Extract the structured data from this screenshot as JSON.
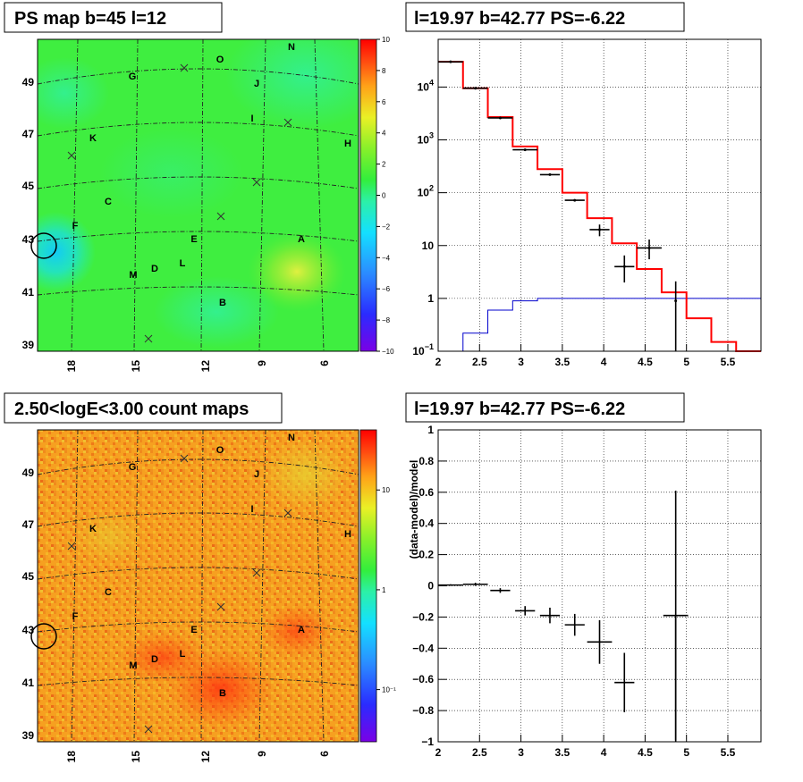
{
  "colors": {
    "data": "#000000",
    "model": "#ff0000",
    "background_model": "#0000cc",
    "grid": "#000000"
  },
  "maps": [
    {
      "title": "PS map b=45 l=12",
      "colorbar": {
        "scale": "linear",
        "range": [
          -10,
          10
        ],
        "ticks": [
          {
            "v": 10,
            "label": "10"
          },
          {
            "v": 8,
            "label": "8"
          },
          {
            "v": 6,
            "label": "6"
          },
          {
            "v": 4,
            "label": "4"
          },
          {
            "v": 2,
            "label": "2"
          },
          {
            "v": 0,
            "label": "0"
          },
          {
            "v": -2,
            "label": "−2"
          },
          {
            "v": -4,
            "label": "−4"
          },
          {
            "v": -6,
            "label": "−6"
          },
          {
            "v": -8,
            "label": "−8"
          },
          {
            "v": -10,
            "label": "−10"
          }
        ]
      }
    },
    {
      "title": "2.50<logE<3.00 count maps",
      "colorbar": {
        "scale": "log",
        "range": [
          0.03,
          40
        ],
        "ticks": [
          {
            "v": 10,
            "label": "10"
          },
          {
            "v": 1,
            "label": "1"
          },
          {
            "v": 0.1,
            "label": "10⁻¹"
          }
        ]
      }
    }
  ],
  "map_axes": {
    "y_ticks": [
      "49",
      "47",
      "45",
      "43",
      "41",
      "39"
    ],
    "x_ticks": [
      "18",
      "15",
      "12",
      "9",
      "6"
    ]
  },
  "sources": [
    {
      "name": "N"
    },
    {
      "name": "O"
    },
    {
      "name": "G"
    },
    {
      "name": "J"
    },
    {
      "name": "I"
    },
    {
      "name": "K"
    },
    {
      "name": "H"
    },
    {
      "name": "C"
    },
    {
      "name": "F"
    },
    {
      "name": "E"
    },
    {
      "name": "A"
    },
    {
      "name": "L"
    },
    {
      "name": "D"
    },
    {
      "name": "M"
    },
    {
      "name": "B"
    }
  ],
  "chart_data": [
    {
      "type": "line",
      "title": "l=19.97 b=42.77 PS=-6.22",
      "xlabel": "",
      "ylabel": "",
      "y_scale": "log",
      "xlim": [
        2,
        5.9
      ],
      "ylim": [
        0.1,
        80000
      ],
      "grid": true,
      "x_ticks": [
        "2",
        "2.5",
        "3",
        "3.5",
        "4",
        "4.5",
        "5",
        "5.5"
      ],
      "y_ticks": [
        {
          "v": 10000,
          "base": "10",
          "exp": "4"
        },
        {
          "v": 1000,
          "base": "10",
          "exp": "3"
        },
        {
          "v": 100,
          "base": "10",
          "exp": "2"
        },
        {
          "v": 10,
          "base": "10",
          "exp": ""
        },
        {
          "v": 1,
          "base": "1",
          "exp": ""
        },
        {
          "v": 0.1,
          "base": "10",
          "exp": "−1"
        }
      ],
      "model_bins": {
        "edges": [
          2.0,
          2.3,
          2.6,
          2.9,
          3.2,
          3.5,
          3.8,
          4.1,
          4.4,
          4.7,
          5.0,
          5.3,
          5.6,
          5.9
        ],
        "values": [
          30000,
          9500,
          2700,
          750,
          280,
          100,
          33,
          11,
          3.6,
          1.3,
          0.42,
          0.15,
          0.1
        ]
      },
      "background_bins": {
        "edges": [
          2.3,
          2.6,
          2.9,
          3.2,
          3.5,
          3.8,
          4.1,
          4.4,
          4.7,
          5.0,
          5.3,
          5.6,
          5.9
        ],
        "values": [
          0.22,
          0.6,
          0.9,
          1.0,
          1.0,
          1.0,
          1.0,
          1.0,
          1.0,
          1.0,
          1.0,
          1.0
        ]
      },
      "data_points": [
        {
          "x": 2.15,
          "y": 30000,
          "xerr": 0.15
        },
        {
          "x": 2.45,
          "y": 9500,
          "xerr": 0.15
        },
        {
          "x": 2.75,
          "y": 2600,
          "xerr": 0.15
        },
        {
          "x": 3.05,
          "y": 650,
          "xerr": 0.15
        },
        {
          "x": 3.35,
          "y": 220,
          "xerr": 0.12
        },
        {
          "x": 3.65,
          "y": 72,
          "xerr": 0.12
        },
        {
          "x": 3.95,
          "y": 20,
          "xerr": 0.12,
          "ylo": 15,
          "yhi": 25
        },
        {
          "x": 4.25,
          "y": 4,
          "xerr": 0.12,
          "ylo": 2,
          "yhi": 6.5
        },
        {
          "x": 4.55,
          "y": 9,
          "xerr": 0.15,
          "ylo": 5.5,
          "yhi": 13
        },
        {
          "x": 4.87,
          "y": 0.9,
          "xerr": 0.0,
          "ylo": 0.1,
          "yhi": 2.1
        }
      ]
    },
    {
      "type": "scatter",
      "title": "l=19.97 b=42.77 PS=-6.22",
      "xlabel": "",
      "ylabel": "(data-model)/model",
      "xlim": [
        2,
        5.9
      ],
      "ylim": [
        -1,
        1
      ],
      "grid": true,
      "x_ticks": [
        "2",
        "2.5",
        "3",
        "3.5",
        "4",
        "4.5",
        "5",
        "5.5"
      ],
      "y_ticks": [
        {
          "v": 1,
          "label": "1"
        },
        {
          "v": 0.8,
          "label": "0.8"
        },
        {
          "v": 0.6,
          "label": "0.6"
        },
        {
          "v": 0.4,
          "label": "0.4"
        },
        {
          "v": 0.2,
          "label": "0.2"
        },
        {
          "v": 0,
          "label": "0"
        },
        {
          "v": -0.2,
          "label": "−0.2"
        },
        {
          "v": -0.4,
          "label": "−0.4"
        },
        {
          "v": -0.6,
          "label": "−0.6"
        },
        {
          "v": -0.8,
          "label": "−0.8"
        },
        {
          "v": -1,
          "label": "−1"
        }
      ],
      "points": [
        {
          "x": 2.15,
          "y": 0.005,
          "xerr": 0.15,
          "yerr": 0.005
        },
        {
          "x": 2.45,
          "y": 0.01,
          "xerr": 0.15,
          "yerr": 0.01
        },
        {
          "x": 2.75,
          "y": -0.03,
          "xerr": 0.12,
          "yerr": 0.015
        },
        {
          "x": 3.05,
          "y": -0.16,
          "xerr": 0.12,
          "yerr": 0.03
        },
        {
          "x": 3.35,
          "y": -0.19,
          "xerr": 0.12,
          "yerr": 0.05
        },
        {
          "x": 3.65,
          "y": -0.25,
          "xerr": 0.12,
          "yerr": 0.07
        },
        {
          "x": 3.95,
          "y": -0.36,
          "xerr": 0.15,
          "yerr": 0.14
        },
        {
          "x": 4.25,
          "y": -0.62,
          "xerr": 0.12,
          "yerr": 0.19
        },
        {
          "x": 4.87,
          "y": -0.19,
          "xerr": 0.15,
          "yerr": 0.8
        }
      ]
    }
  ]
}
